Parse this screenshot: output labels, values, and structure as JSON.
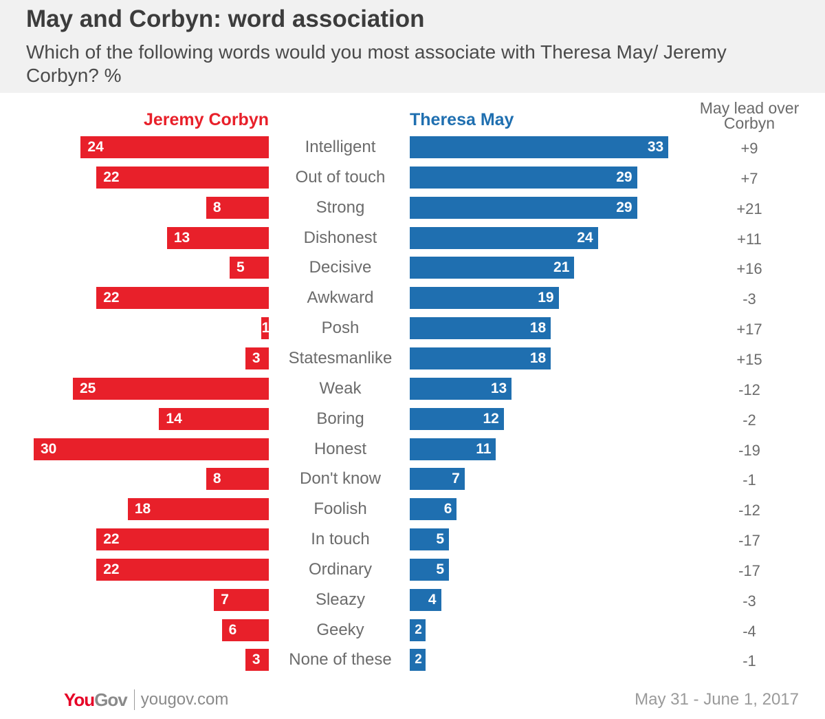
{
  "title": "May and Corbyn: word association",
  "subtitle": "Which of the following words would you most associate with Theresa May/ Jeremy Corbyn? %",
  "colors": {
    "corbyn": "#e8202a",
    "may": "#1f6fb0"
  },
  "legend": {
    "corbyn": "Jeremy Corbyn",
    "may": "Theresa May",
    "lead_header": "May lead over Corbyn"
  },
  "chart_data": {
    "type": "bar",
    "orientation": "horizontal-diverging",
    "title": "May and Corbyn: word association",
    "subtitle": "Which of the following words would you most associate with Theresa May/ Jeremy Corbyn? %",
    "categories": [
      "Intelligent",
      "Out of touch",
      "Strong",
      "Dishonest",
      "Decisive",
      "Awkward",
      "Posh",
      "Statesmanlike",
      "Weak",
      "Boring",
      "Honest",
      "Don't know",
      "Foolish",
      "In touch",
      "Ordinary",
      "Sleazy",
      "Geeky",
      "None of these"
    ],
    "series": [
      {
        "name": "Jeremy Corbyn",
        "values": [
          24,
          22,
          8,
          13,
          5,
          22,
          1,
          3,
          25,
          14,
          30,
          8,
          18,
          22,
          22,
          7,
          6,
          3
        ]
      },
      {
        "name": "Theresa May",
        "values": [
          33,
          29,
          29,
          24,
          21,
          19,
          18,
          18,
          13,
          12,
          11,
          7,
          6,
          5,
          5,
          4,
          2,
          2
        ]
      }
    ],
    "lead_column_title": "May lead over Corbyn",
    "lead": [
      "+9",
      "+7",
      "+21",
      "+11",
      "+16",
      "-3",
      "+17",
      "+15",
      "-12",
      "-2",
      "-19",
      "-1",
      "-12",
      "-17",
      "-17",
      "-3",
      "-4",
      "-1"
    ]
  },
  "footer": {
    "brand_you": "You",
    "brand_gov": "Gov",
    "url": "yougov.com",
    "date": "May 31 - June 1, 2017"
  }
}
